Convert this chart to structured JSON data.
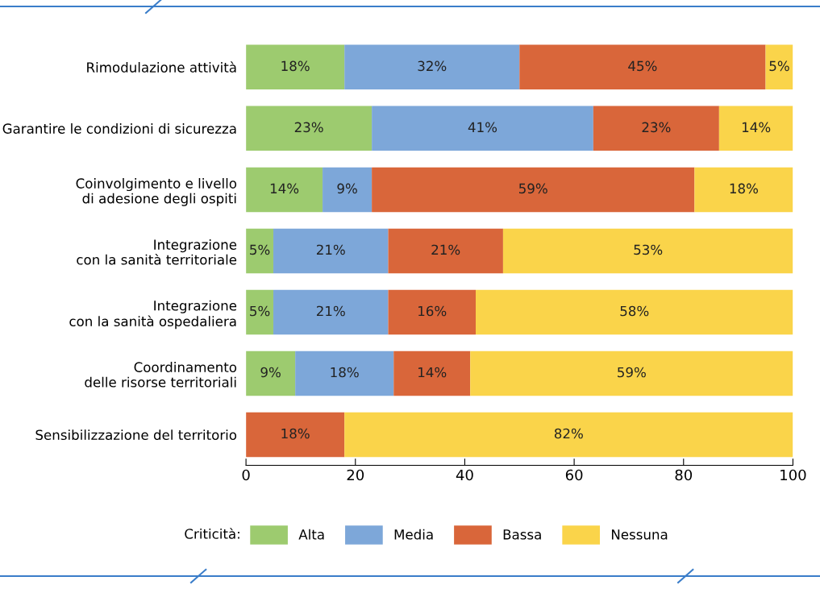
{
  "chart_data": {
    "type": "bar",
    "orientation": "horizontal",
    "stacked": true,
    "categories": [
      "Rimodulazione attività",
      "Garantire le condizioni di sicurezza",
      "Coinvolgimento e livello\ndi adesione degli ospiti",
      "Integrazione\ncon la sanità territoriale",
      "Integrazione\ncon la sanità ospedaliera",
      "Coordinamento\ndelle risorse territoriali",
      "Sensibilizzazione del territorio"
    ],
    "series": [
      {
        "name": "Alta",
        "color": "#9dcb6f",
        "values": [
          18,
          23,
          14,
          5,
          5,
          9,
          0
        ],
        "value_labels": [
          "18%",
          "23%",
          "14%",
          "5%",
          "5%",
          "9%",
          null
        ]
      },
      {
        "name": "Media",
        "color": "#7da7d9",
        "values": [
          32,
          40.5,
          9,
          21,
          21,
          18,
          0
        ],
        "value_labels": [
          "32%",
          "41%",
          "9%",
          "21%",
          "21%",
          "18%",
          null
        ]
      },
      {
        "name": "Bassa",
        "color": "#d9663a",
        "values": [
          45,
          23,
          59,
          21,
          16,
          14,
          18
        ],
        "value_labels": [
          "45%",
          "23%",
          "59%",
          "21%",
          "16%",
          "14%",
          "18%"
        ]
      },
      {
        "name": "Nessuna",
        "color": "#fad44a",
        "values": [
          5,
          13.5,
          18,
          53,
          58,
          59,
          82
        ],
        "value_labels": [
          "5%",
          "14%",
          "18%",
          "53%",
          "58%",
          "59%",
          "82%"
        ]
      }
    ],
    "xlim": [
      0,
      100
    ],
    "xticks": [
      0,
      20,
      40,
      60,
      80,
      100
    ],
    "legend": "bottom",
    "legend_title": "Criticità:",
    "grid": false
  }
}
